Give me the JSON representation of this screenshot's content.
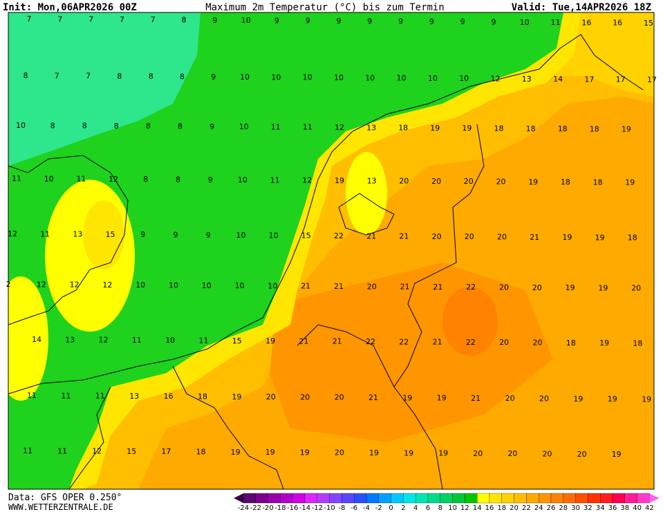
{
  "header": {
    "init": "Init: Mon,06APR2026 00Z",
    "title": "Maximum 2m Temperatur (°C) bis zum Termin",
    "valid": "Valid: Tue,14APR2026 18Z"
  },
  "footer": {
    "data": "Data: GFS OPER 0.250°",
    "site": "WWW.WETTERZENTRALE.DE"
  },
  "map": {
    "rows": [
      [
        7,
        7,
        7,
        7,
        7,
        8,
        9,
        10,
        9,
        9,
        9,
        9,
        9,
        9,
        9,
        9,
        10,
        11,
        16,
        16,
        15
      ],
      [
        8,
        7,
        7,
        8,
        8,
        8,
        9,
        10,
        10,
        10,
        10,
        10,
        10,
        10,
        10,
        12,
        13,
        14,
        17,
        17,
        17
      ],
      [
        10,
        8,
        8,
        8,
        8,
        8,
        9,
        10,
        11,
        11,
        12,
        13,
        18,
        19,
        19,
        18,
        18,
        18,
        18,
        19
      ],
      [
        11,
        10,
        11,
        12,
        8,
        8,
        9,
        10,
        11,
        12,
        19,
        13,
        20,
        20,
        20,
        20,
        19,
        18,
        18,
        19
      ],
      [
        12,
        11,
        13,
        15,
        9,
        9,
        9,
        10,
        10,
        15,
        22,
        21,
        21,
        20,
        20,
        20,
        21,
        19,
        19,
        18
      ],
      [
        2,
        12,
        12,
        12,
        10,
        10,
        10,
        10,
        10,
        21,
        21,
        20,
        21,
        21,
        22,
        20,
        20,
        19,
        19,
        20
      ],
      [
        14,
        13,
        12,
        11,
        10,
        11,
        15,
        19,
        21,
        21,
        22,
        22,
        21,
        22,
        20,
        20,
        18,
        19,
        18
      ],
      [
        11,
        11,
        11,
        13,
        16,
        18,
        19,
        20,
        20,
        20,
        21,
        19,
        19,
        21,
        20,
        20,
        19,
        19,
        19
      ],
      [
        11,
        11,
        12,
        15,
        17,
        18,
        19,
        19,
        19,
        20,
        19,
        19,
        19,
        20,
        20,
        20,
        20,
        19
      ]
    ]
  },
  "colorbar": {
    "ticks": [
      -24,
      -22,
      -20,
      -18,
      -16,
      -14,
      -12,
      -10,
      -8,
      -6,
      -4,
      -2,
      0,
      2,
      4,
      6,
      8,
      10,
      12,
      14,
      16,
      18,
      20,
      22,
      24,
      26,
      28,
      30,
      32,
      34,
      36,
      38,
      40,
      42
    ],
    "colors": [
      "#3c0046",
      "#5a0a6e",
      "#7d008c",
      "#9b00aa",
      "#b400c8",
      "#d200e6",
      "#dc28ff",
      "#b43cff",
      "#8246ff",
      "#5a46ff",
      "#2850ff",
      "#0078ff",
      "#00a0ff",
      "#00c8ff",
      "#00e6e6",
      "#00e6b4",
      "#00dc8c",
      "#00d264",
      "#00c83c",
      "#00c800",
      "#ffff00",
      "#ffe600",
      "#ffd200",
      "#ffbe00",
      "#ffaa00",
      "#ff9600",
      "#ff8200",
      "#ff6e00",
      "#ff5000",
      "#ff3200",
      "#ff1e1e",
      "#ff0050",
      "#ff1e96",
      "#ff3cc8",
      "#ff64f0"
    ]
  }
}
